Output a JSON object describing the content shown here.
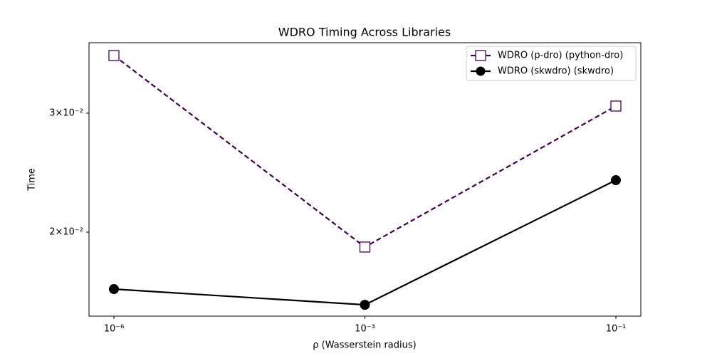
{
  "chart_data": {
    "type": "line",
    "title": "WDRO Timing Across Libraries",
    "xlabel": "ρ (Wasserstein radius)",
    "ylabel": "Time",
    "categories": [
      "10⁻⁶",
      "10⁻³",
      "10⁻¹"
    ],
    "ylog": true,
    "ylim": [
      0.01502,
      0.03815
    ],
    "yticks": [
      {
        "value": 0.02,
        "label": "2×10⁻²"
      },
      {
        "value": 0.03,
        "label": "3×10⁻²"
      }
    ],
    "legend": "upper right",
    "series": [
      {
        "name": "WDRO (p-dro) (python-dro)",
        "color": "#440154",
        "dash": true,
        "marker": "square",
        "values": [
          0.03652,
          0.01901,
          0.03074
        ]
      },
      {
        "name": "WDRO (skwdro) (skwdro)",
        "color": "#000000",
        "dash": false,
        "marker": "circle",
        "values": [
          0.01647,
          0.01561,
          0.02388
        ]
      }
    ]
  }
}
